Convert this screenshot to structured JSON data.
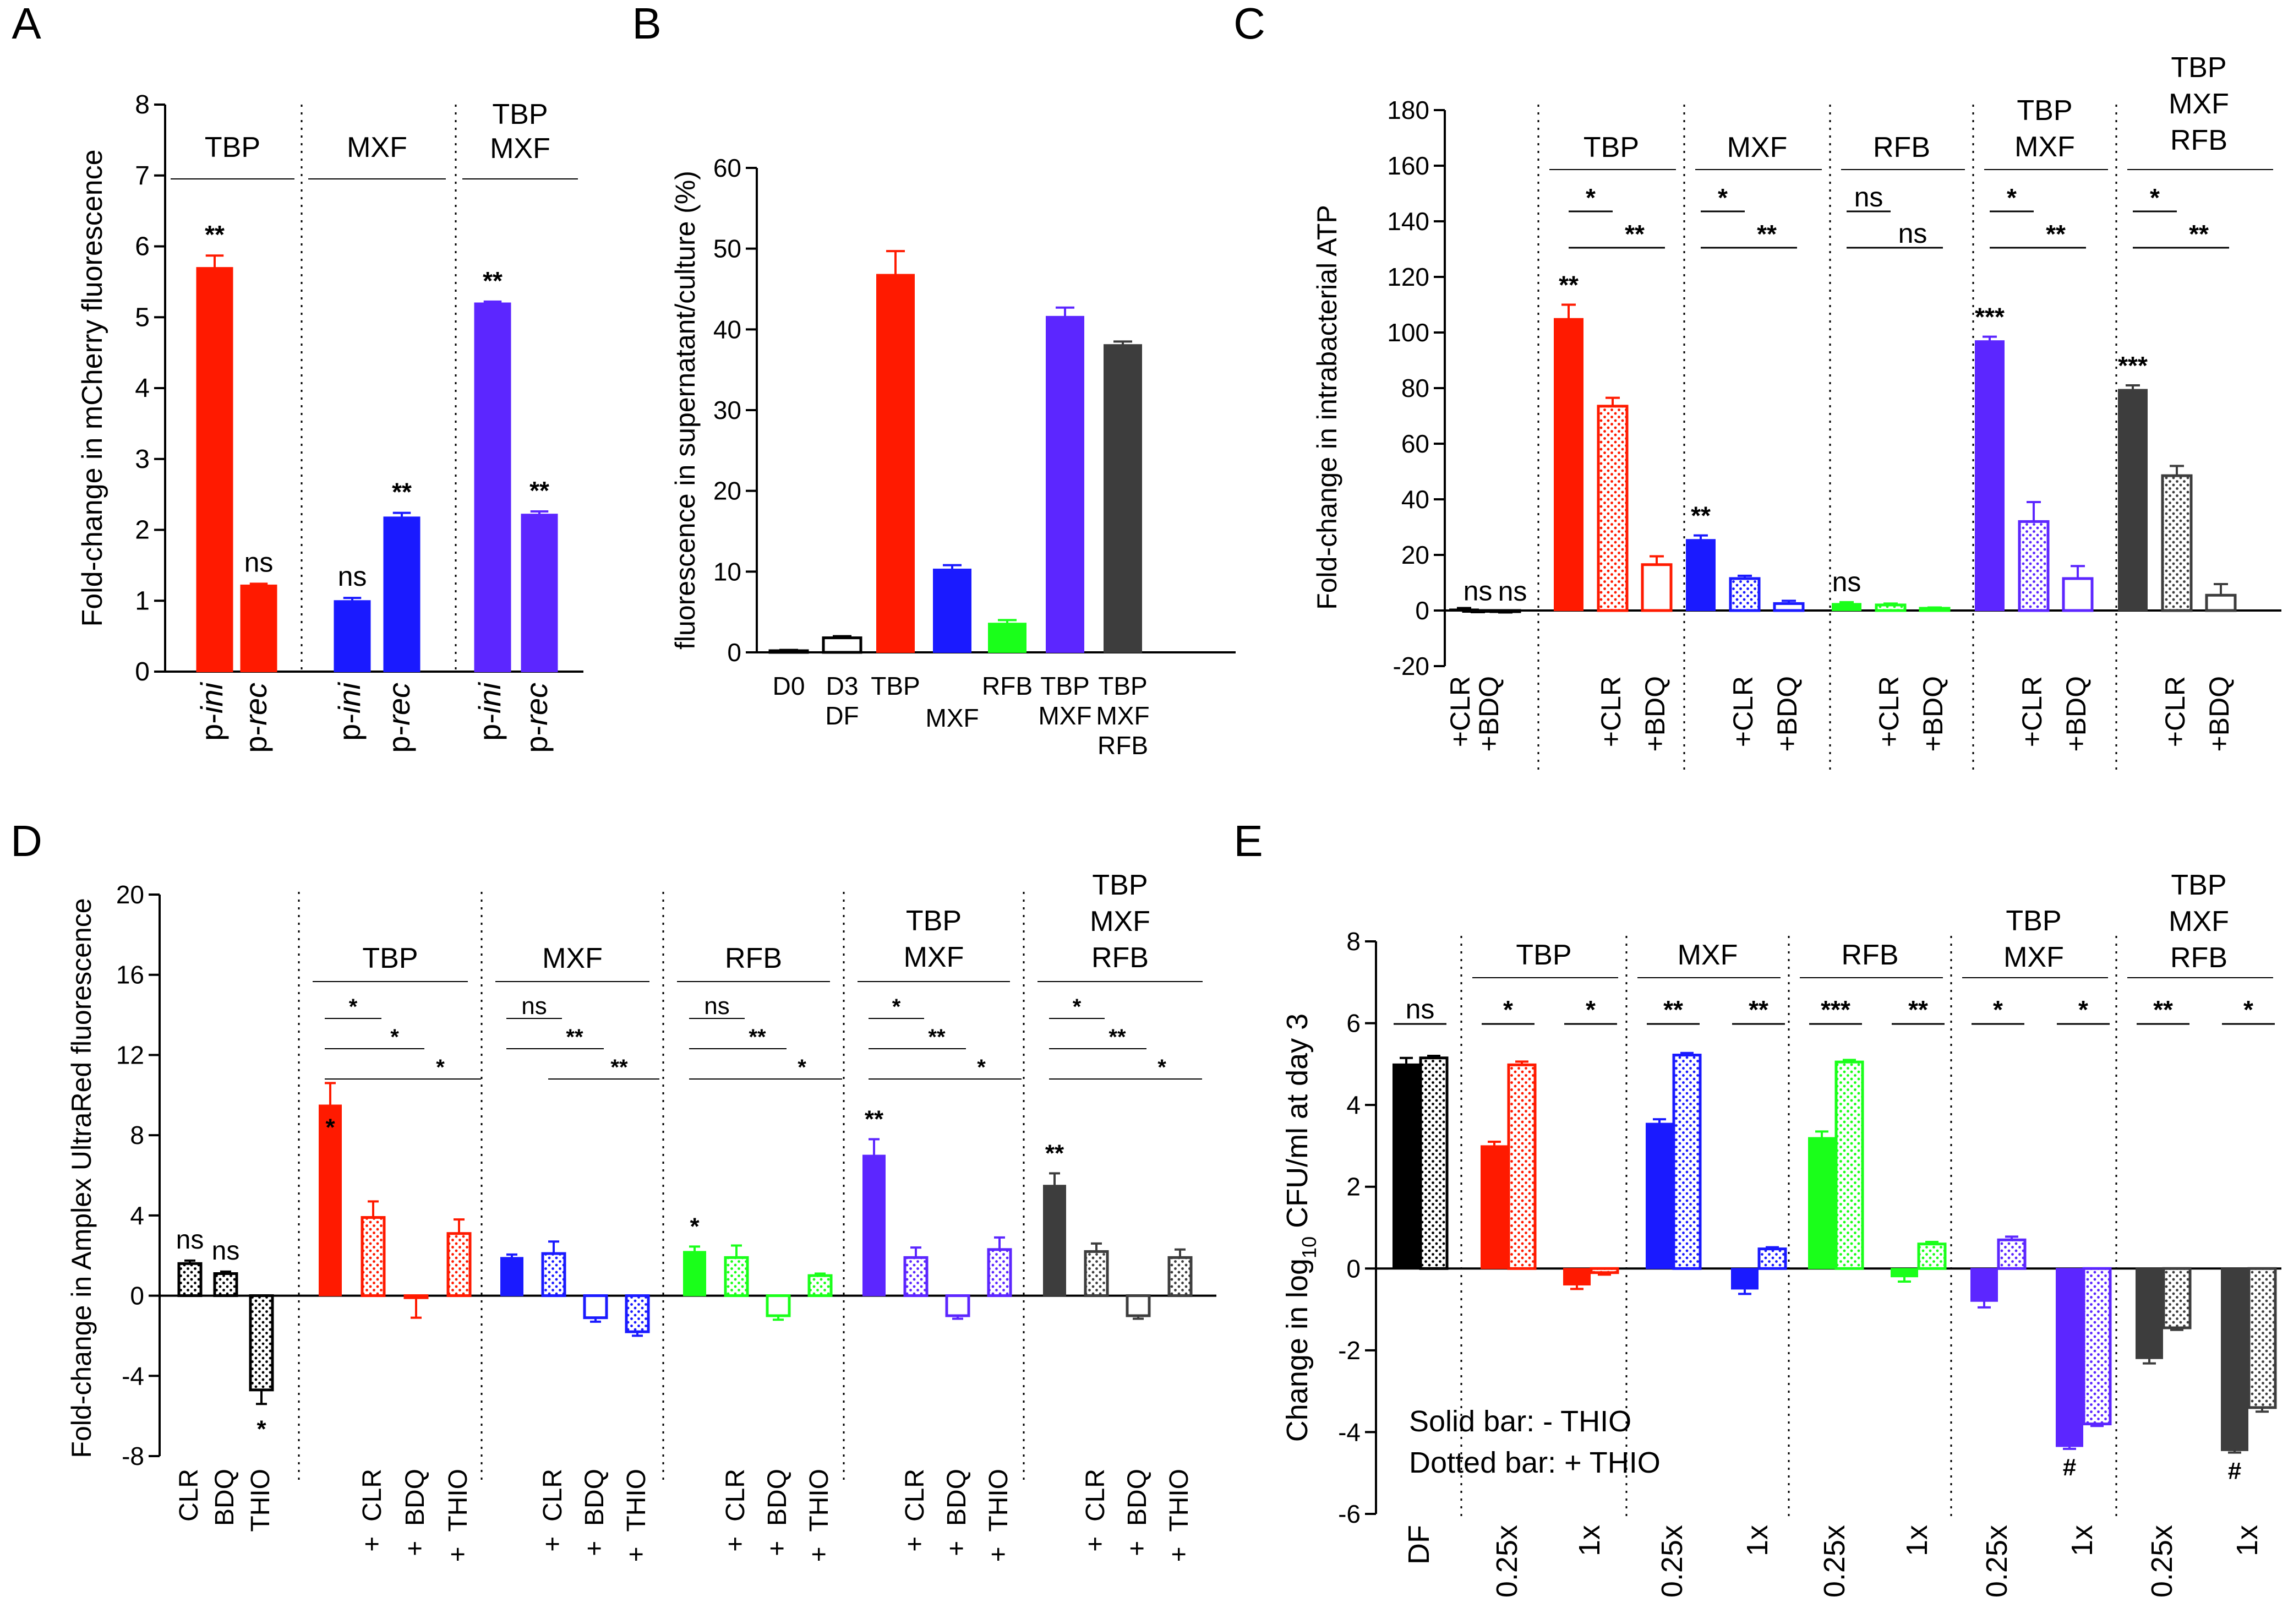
{
  "chart_data": [
    {
      "panel": "A",
      "type": "bar",
      "ylabel": "Fold-change in mCherry fluorescence",
      "ylim": [
        0,
        8
      ],
      "yticks": [
        "0",
        "1",
        "2",
        "3",
        "4",
        "5",
        "6",
        "7",
        "8"
      ],
      "groups": [
        {
          "label": "TBP",
          "bars": [
            {
              "tick": [
                "p-",
                "ini"
              ],
              "value": 5.7,
              "error": 0.17,
              "color": "#ff1a00",
              "sig": "**"
            },
            {
              "tick": [
                "p-",
                "rec"
              ],
              "value": 1.22,
              "error": 0.02,
              "color": "#ff1a00",
              "sig": "ns"
            }
          ]
        },
        {
          "label": "MXF",
          "bars": [
            {
              "tick": [
                "p-",
                "ini"
              ],
              "value": 1.0,
              "error": 0.04,
              "color": "#1a1aff",
              "sig": "ns"
            },
            {
              "tick": [
                "p-",
                "rec"
              ],
              "value": 2.18,
              "error": 0.06,
              "color": "#1a1aff",
              "sig": "**"
            }
          ]
        },
        {
          "label": "TBP\nMXF",
          "bars": [
            {
              "tick": [
                "p-",
                "ini"
              ],
              "value": 5.2,
              "error": 0.02,
              "color": "#5c26ff",
              "sig": "**"
            },
            {
              "tick": [
                "p-",
                "rec"
              ],
              "value": 2.22,
              "error": 0.04,
              "color": "#5c26ff",
              "sig": "**"
            }
          ]
        }
      ]
    },
    {
      "panel": "B",
      "type": "bar",
      "ylabel": "fluorescence in supernatant/culture (%)",
      "ylim": [
        0,
        60
      ],
      "yticks": [
        "0",
        "10",
        "20",
        "30",
        "40",
        "50",
        "60"
      ],
      "bars": [
        {
          "label": "D0",
          "value": 0.2,
          "error": 0.1,
          "color": "#ffffff",
          "fill": "open"
        },
        {
          "label": "D3\nDF",
          "value": 1.8,
          "error": 0.2,
          "color": "#ffffff",
          "fill": "open"
        },
        {
          "label": "TBP",
          "value": 46.8,
          "error": 2.9,
          "color": "#ff1a00"
        },
        {
          "label": "MXF",
          "value": 10.3,
          "error": 0.5,
          "color": "#1a1aff"
        },
        {
          "label": "RFB",
          "value": 3.6,
          "error": 0.4,
          "color": "#1aff1a"
        },
        {
          "label": "TBP\nMXF",
          "value": 41.6,
          "error": 1.1,
          "color": "#5c26ff"
        },
        {
          "label": "TBP\nMXF\nRFB",
          "value": 38.1,
          "error": 0.4,
          "color": "#3d3d3d"
        }
      ]
    },
    {
      "panel": "C",
      "type": "bar",
      "ylabel": "Fold-change in intrabacterial ATP",
      "ylim": [
        -20,
        180
      ],
      "yticks": [
        "-20",
        "0",
        "20",
        "40",
        "60",
        "80",
        "100",
        "120",
        "140",
        "160",
        "180"
      ],
      "tick_labels": [
        "+CLR",
        "+BDQ"
      ],
      "groups": [
        {
          "label": "",
          "color": "#000000",
          "bars": [
            {
              "value": 0.5,
              "error": 0.4,
              "fill": "solid",
              "tick": ""
            },
            {
              "value": -0.3,
              "error": 0.3,
              "fill": "dotted",
              "tick": "+CLR",
              "sig": "ns"
            },
            {
              "value": -0.4,
              "error": 0.3,
              "fill": "open",
              "tick": "+BDQ",
              "sig": "ns"
            }
          ],
          "comparisons": []
        },
        {
          "label": "TBP",
          "color": "#ff1a00",
          "bars": [
            {
              "value": 105,
              "error": 5.0,
              "fill": "solid",
              "tick": "",
              "sig": "**"
            },
            {
              "value": 73.5,
              "error": 3.0,
              "fill": "dotted",
              "tick": "+CLR"
            },
            {
              "value": 16.5,
              "error": 3.0,
              "fill": "open",
              "tick": "+BDQ"
            }
          ],
          "comparisons": [
            "*",
            "**"
          ]
        },
        {
          "label": "MXF",
          "color": "#1a1aff",
          "bars": [
            {
              "value": 25.5,
              "error": 1.5,
              "fill": "solid",
              "tick": "",
              "sig": "**"
            },
            {
              "value": 11.5,
              "error": 1.0,
              "fill": "dotted",
              "tick": "+CLR"
            },
            {
              "value": 2.5,
              "error": 1.0,
              "fill": "open",
              "tick": "+BDQ"
            }
          ],
          "comparisons": [
            "*",
            "**"
          ]
        },
        {
          "label": "RFB",
          "color": "#1aff1a",
          "bars": [
            {
              "value": 2.5,
              "error": 0.5,
              "fill": "solid",
              "tick": "",
              "sig": "ns"
            },
            {
              "value": 2.0,
              "error": 0.5,
              "fill": "dotted",
              "tick": "+CLR"
            },
            {
              "value": 0.8,
              "error": 0.3,
              "fill": "open",
              "tick": "+BDQ"
            }
          ],
          "comparisons": [
            "ns",
            "ns"
          ]
        },
        {
          "label": "TBP\nMXF",
          "color": "#5c26ff",
          "bars": [
            {
              "value": 97,
              "error": 1.5,
              "fill": "solid",
              "tick": "",
              "sig": "***"
            },
            {
              "value": 32,
              "error": 7.0,
              "fill": "dotted",
              "tick": "+CLR"
            },
            {
              "value": 11.5,
              "error": 4.5,
              "fill": "open",
              "tick": "+BDQ"
            }
          ],
          "comparisons": [
            "*",
            "**"
          ]
        },
        {
          "label": "TBP\nMXF\nRFB",
          "color": "#3d3d3d",
          "bars": [
            {
              "value": 79.5,
              "error": 1.5,
              "fill": "solid",
              "tick": "",
              "sig": "***"
            },
            {
              "value": 48.5,
              "error": 3.5,
              "fill": "dotted",
              "tick": "+CLR"
            },
            {
              "value": 5.5,
              "error": 4.0,
              "fill": "open",
              "tick": "+BDQ"
            }
          ],
          "comparisons": [
            "*",
            "**"
          ]
        }
      ]
    },
    {
      "panel": "D",
      "type": "bar",
      "ylabel": "Fold-change in Amplex UltraRed fluorescence",
      "ylim": [
        -8,
        20
      ],
      "yticks": [
        "-8",
        "-4",
        "0",
        "4",
        "8",
        "12",
        "16",
        "20"
      ],
      "groups": [
        {
          "label": "",
          "color": "#000000",
          "bars": [
            {
              "value": 1.6,
              "error": 0.15,
              "fill": "dotted",
              "tick": "CLR",
              "sig": "ns"
            },
            {
              "value": 1.1,
              "error": 0.1,
              "fill": "dotted",
              "tick": "BDQ",
              "sig": "ns"
            },
            {
              "value": -4.7,
              "error": 0.7,
              "fill": "dotted",
              "tick": "THIO",
              "sig": "*"
            }
          ],
          "comparisons": []
        },
        {
          "label": "TBP",
          "color": "#ff1a00",
          "bars": [
            {
              "value": 9.5,
              "error": 1.1,
              "fill": "solid",
              "tick": "",
              "sig": "*"
            },
            {
              "value": 3.9,
              "error": 0.8,
              "fill": "dotted",
              "tick": "+ CLR"
            },
            {
              "value": -0.1,
              "error": 1.0,
              "fill": "open",
              "tick": "+ BDQ"
            },
            {
              "value": 3.1,
              "error": 0.7,
              "fill": "dotted",
              "tick": "+ THIO"
            }
          ],
          "comparisons": [
            "*",
            "*",
            "*"
          ]
        },
        {
          "label": "MXF",
          "color": "#1a1aff",
          "bars": [
            {
              "value": 1.9,
              "error": 0.15,
              "fill": "solid",
              "tick": ""
            },
            {
              "value": 2.1,
              "error": 0.6,
              "fill": "dotted",
              "tick": "+ CLR"
            },
            {
              "value": -1.1,
              "error": 0.2,
              "fill": "open",
              "tick": "+ BDQ"
            },
            {
              "value": -1.8,
              "error": 0.2,
              "fill": "dotted",
              "tick": "+ THIO"
            }
          ],
          "comparisons": [
            "ns",
            "**",
            "**"
          ]
        },
        {
          "label": "RFB",
          "color": "#1aff1a",
          "bars": [
            {
              "value": 2.2,
              "error": 0.25,
              "fill": "solid",
              "tick": "",
              "sig": "*"
            },
            {
              "value": 1.9,
              "error": 0.6,
              "fill": "dotted",
              "tick": "+ CLR"
            },
            {
              "value": -1.0,
              "error": 0.2,
              "fill": "open",
              "tick": "+ BDQ"
            },
            {
              "value": 1.0,
              "error": 0.1,
              "fill": "dotted",
              "tick": "+ THIO"
            }
          ],
          "comparisons": [
            "ns",
            "**",
            "*"
          ]
        },
        {
          "label": "TBP\nMXF",
          "color": "#5c26ff",
          "bars": [
            {
              "value": 7.0,
              "error": 0.8,
              "fill": "solid",
              "tick": "",
              "sig": "**"
            },
            {
              "value": 1.9,
              "error": 0.5,
              "fill": "dotted",
              "tick": "+ CLR"
            },
            {
              "value": -1.0,
              "error": 0.15,
              "fill": "open",
              "tick": "+ BDQ"
            },
            {
              "value": 2.3,
              "error": 0.6,
              "fill": "dotted",
              "tick": "+ THIO"
            }
          ],
          "comparisons": [
            "*",
            "**",
            "*"
          ]
        },
        {
          "label": "TBP\nMXF\nRFB",
          "color": "#3d3d3d",
          "bars": [
            {
              "value": 5.5,
              "error": 0.6,
              "fill": "solid",
              "tick": "",
              "sig": "**"
            },
            {
              "value": 2.2,
              "error": 0.4,
              "fill": "dotted",
              "tick": "+ CLR"
            },
            {
              "value": -1.0,
              "error": 0.15,
              "fill": "open",
              "tick": "+ BDQ"
            },
            {
              "value": 1.9,
              "error": 0.4,
              "fill": "dotted",
              "tick": "+ THIO"
            }
          ],
          "comparisons": [
            "*",
            "**",
            "*"
          ]
        }
      ]
    },
    {
      "panel": "E",
      "type": "bar",
      "ylabel_parts": [
        "Change in log",
        "10",
        " CFU/ml at day 3"
      ],
      "ylim": [
        -6,
        8
      ],
      "yticks": [
        "-6",
        "-4",
        "-2",
        "0",
        "2",
        "4",
        "6",
        "8"
      ],
      "legend": [
        "Solid bar: - THIO",
        "Dotted bar: + THIO"
      ],
      "groups": [
        {
          "label": "",
          "color": "#000000",
          "clusters": [
            {
              "tick": "DF",
              "sig": "ns",
              "solid": {
                "value": 5.0,
                "error": 0.15
              },
              "dotted": {
                "value": 5.15,
                "error": 0.05
              }
            }
          ]
        },
        {
          "label": "TBP",
          "color": "#ff1a00",
          "clusters": [
            {
              "tick": "0.25x",
              "sig": "*",
              "solid": {
                "value": 3.0,
                "error": 0.1
              },
              "dotted": {
                "value": 4.98,
                "error": 0.08
              }
            },
            {
              "tick": "1x",
              "sig": "*",
              "solid": {
                "value": -0.4,
                "error": 0.1
              },
              "dotted": {
                "value": -0.1,
                "error": 0.05
              }
            }
          ]
        },
        {
          "label": "MXF",
          "color": "#1a1aff",
          "clusters": [
            {
              "tick": "0.25x",
              "sig": "**",
              "solid": {
                "value": 3.55,
                "error": 0.1
              },
              "dotted": {
                "value": 5.22,
                "error": 0.05
              }
            },
            {
              "tick": "1x",
              "sig": "**",
              "solid": {
                "value": -0.5,
                "error": 0.12
              },
              "dotted": {
                "value": 0.48,
                "error": 0.04
              }
            }
          ]
        },
        {
          "label": "RFB",
          "color": "#1aff1a",
          "clusters": [
            {
              "tick": "0.25x",
              "sig": "***",
              "solid": {
                "value": 3.2,
                "error": 0.15
              },
              "dotted": {
                "value": 5.05,
                "error": 0.05
              }
            },
            {
              "tick": "1x",
              "sig": "**",
              "solid": {
                "value": -0.2,
                "error": 0.12
              },
              "dotted": {
                "value": 0.6,
                "error": 0.05
              }
            }
          ]
        },
        {
          "label": "TBP\nMXF",
          "color": "#5c26ff",
          "clusters": [
            {
              "tick": "0.25x",
              "sig": "*",
              "solid": {
                "value": -0.8,
                "error": 0.15
              },
              "dotted": {
                "value": 0.7,
                "error": 0.08
              }
            },
            {
              "tick": "1x",
              "sig": "*",
              "solid": {
                "value": -4.35,
                "error": 0.06
              },
              "dotted": {
                "value": -3.8,
                "error": 0.05
              },
              "note": "#"
            }
          ]
        },
        {
          "label": "TBP\nMXF\nRFB",
          "color": "#3d3d3d",
          "clusters": [
            {
              "tick": "0.25x",
              "sig": "**",
              "solid": {
                "value": -2.2,
                "error": 0.12
              },
              "dotted": {
                "value": -1.45,
                "error": 0.05
              }
            },
            {
              "tick": "1x",
              "sig": "*",
              "solid": {
                "value": -4.45,
                "error": 0.05
              },
              "dotted": {
                "value": -3.4,
                "error": 0.1
              },
              "note": "#"
            }
          ]
        }
      ]
    }
  ]
}
